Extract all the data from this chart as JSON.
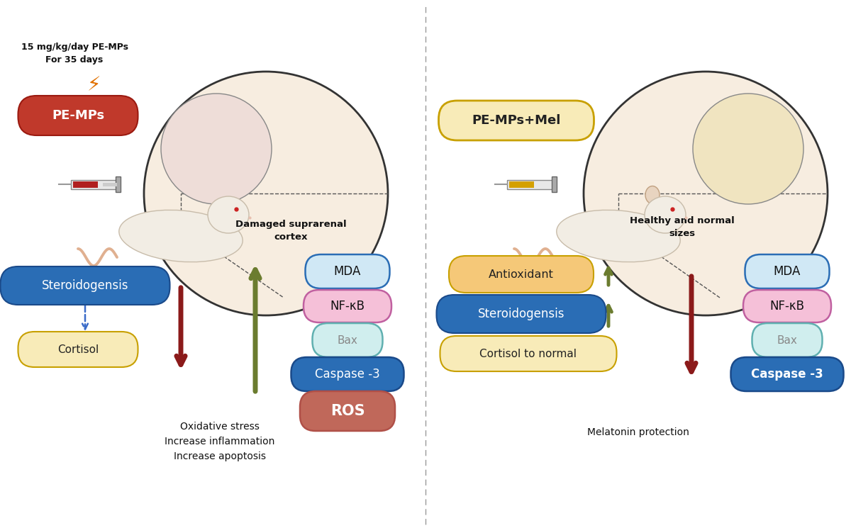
{
  "bg_color": "#ffffff",
  "left_panel": {
    "label_text": "15 mg/kg/day PE-MPs\nFor 35 days",
    "pe_mp_label": "PE-MPs",
    "pe_mp_box_color": "#c0392b",
    "pe_mp_text_color": "#ffffff",
    "circle_fill": "#f7ede0",
    "circle_label": "Damaged suprarenal\ncortex",
    "steroid_label": "Steroidogensis",
    "steroid_bg": "#2a6db5",
    "cortisol_label": "Cortisol",
    "cortisol_bg": "#f8ebb8",
    "cortisol_border": "#c8a000",
    "markers_left": [
      "MDA",
      "NF-κB",
      "Bax",
      "Caspase -3",
      "ROS"
    ],
    "marker_colors": [
      "#d0e8f5",
      "#f5c0d8",
      "#d0eeee",
      "#2a6db5",
      "#c0685a"
    ],
    "marker_text_colors": [
      "#111111",
      "#111111",
      "#888888",
      "#ffffff",
      "#ffffff"
    ],
    "marker_borders": [
      "#2a6db5",
      "#c060a0",
      "#60b0b0",
      "#1a4a8a",
      "#b05048"
    ],
    "bottom_text": "Oxidative stress\nIncrease inflammation\nIncrease apoptosis",
    "up_arrow_color": "#6b7c2f",
    "down_arrow_color": "#8b1a1a"
  },
  "right_panel": {
    "pe_mel_label": "PE-MPs+Mel",
    "pe_mel_bg": "#f8ebb8",
    "pe_mel_border": "#c8a000",
    "pe_mel_text": "#222222",
    "circle_fill": "#f7ede0",
    "circle_label": "Healthy and normal\nsizes",
    "antioxidant_label": "Antioxidant",
    "antioxidant_bg": "#f5c878",
    "antioxidant_border": "#c8a000",
    "antioxidant_text": "#222222",
    "steroid_label": "Steroidogensis",
    "steroid_bg": "#2a6db5",
    "cortisol_label": "Cortisol to normal",
    "cortisol_bg": "#f8ebb8",
    "cortisol_border": "#c8a000",
    "markers_right": [
      "MDA",
      "NF-κB",
      "Bax",
      "Caspase -3"
    ],
    "marker_colors_r": [
      "#d0e8f5",
      "#f5c0d8",
      "#d0eeee",
      "#2a6db5"
    ],
    "marker_text_colors_r": [
      "#111111",
      "#111111",
      "#888888",
      "#ffffff"
    ],
    "marker_borders_r": [
      "#2a6db5",
      "#c060a0",
      "#60b0b0",
      "#1a4a8a"
    ],
    "bottom_text": "Melatonin protection",
    "up_arrow_color": "#6b7c2f",
    "down_arrow_color": "#8b1a1a"
  }
}
